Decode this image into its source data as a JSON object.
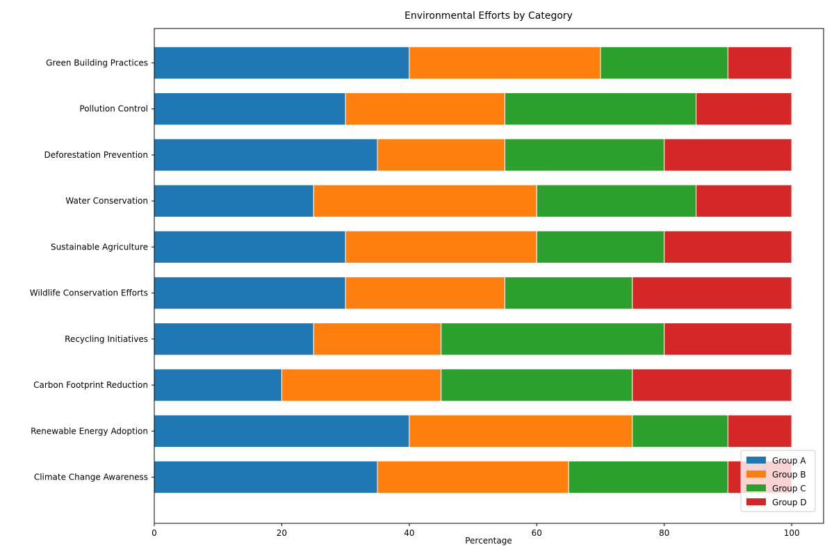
{
  "chart_data": {
    "type": "bar",
    "orientation": "horizontal",
    "stacked": true,
    "title": "Environmental Efforts by Category",
    "xlabel": "Percentage",
    "ylabel": "",
    "xlim": [
      0,
      105
    ],
    "xticks": [
      0,
      20,
      40,
      60,
      80,
      100
    ],
    "grid": false,
    "legend_position": "bottom-right",
    "categories": [
      "Green Building Practices",
      "Pollution Control",
      "Deforestation Prevention",
      "Water Conservation",
      "Sustainable Agriculture",
      "Wildlife Conservation Efforts",
      "Recycling Initiatives",
      "Carbon Footprint Reduction",
      "Renewable Energy Adoption",
      "Climate Change Awareness"
    ],
    "series": [
      {
        "name": "Group A",
        "color": "#1f77b4",
        "values": [
          40,
          30,
          35,
          25,
          30,
          30,
          25,
          20,
          40,
          35
        ]
      },
      {
        "name": "Group B",
        "color": "#ff7f0e",
        "values": [
          30,
          25,
          20,
          35,
          30,
          25,
          20,
          25,
          35,
          30
        ]
      },
      {
        "name": "Group C",
        "color": "#2ca02c",
        "values": [
          20,
          30,
          25,
          25,
          20,
          20,
          35,
          30,
          15,
          25
        ]
      },
      {
        "name": "Group D",
        "color": "#d62728",
        "values": [
          10,
          15,
          20,
          15,
          20,
          25,
          20,
          25,
          10,
          10
        ]
      }
    ]
  }
}
